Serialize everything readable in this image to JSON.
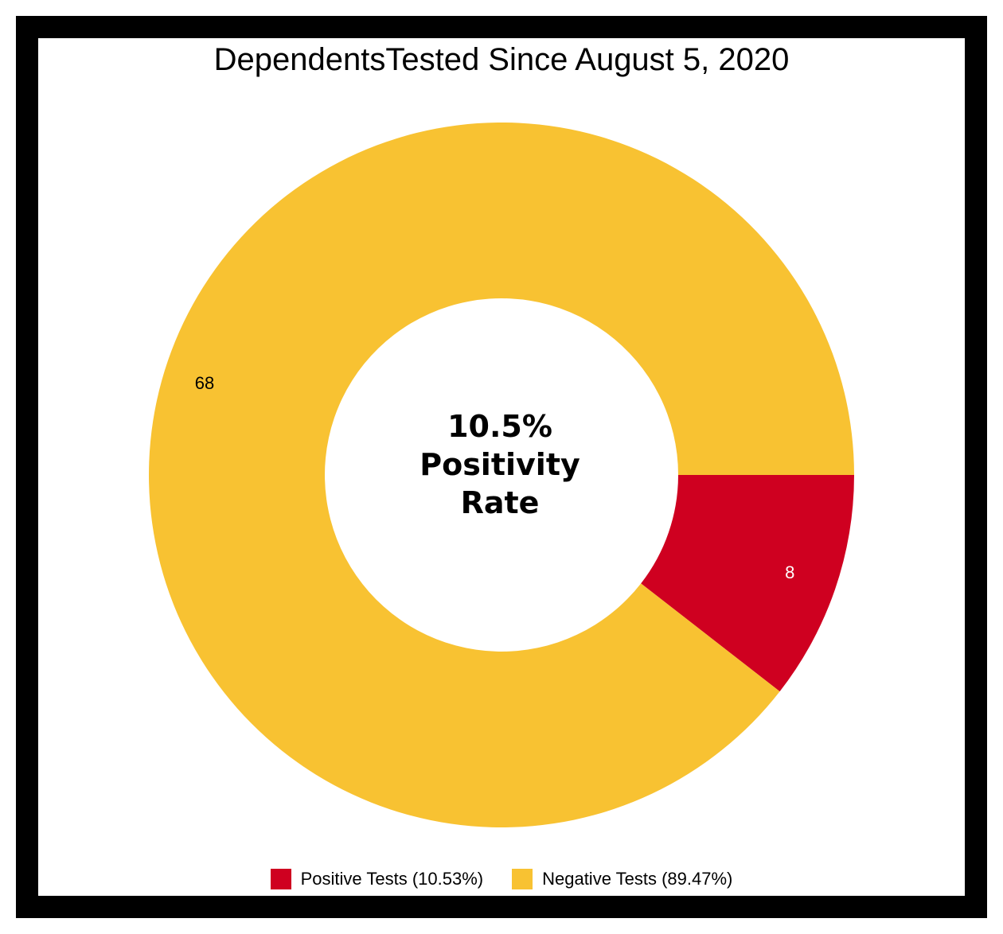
{
  "colors": {
    "positive": "#cf0020",
    "negative": "#f8c232",
    "frame": "#000000",
    "background": "#ffffff"
  },
  "chart_data": {
    "type": "pie",
    "title": "DependentsTested Since August 5, 2020",
    "center_label": {
      "line1": "10.5%",
      "line2": "Positivity",
      "line3": "Rate"
    },
    "slices": [
      {
        "name": "Positive Tests (10.53%)",
        "value": 8,
        "label": "8",
        "color": "#cf0020"
      },
      {
        "name": "Negative Tests (89.47%)",
        "value": 68,
        "label": "68",
        "color": "#f8c232"
      }
    ],
    "legend_placement": "bottom"
  }
}
